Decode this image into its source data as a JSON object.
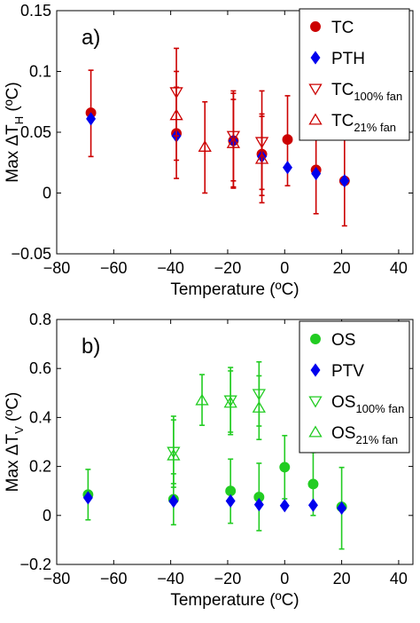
{
  "chart_data": [
    {
      "type": "scatter",
      "panel_label": "a)",
      "xlabel": "Temperature (ºC)",
      "ylabel_main": "Max ΔT",
      "ylabel_sub": "H",
      "ylabel_unit": " (ºC)",
      "xlim": [
        -80,
        45
      ],
      "ylim": [
        -0.05,
        0.15
      ],
      "xticks": [
        -80,
        -60,
        -40,
        -20,
        0,
        20,
        40
      ],
      "yticks": [
        -0.05,
        0,
        0.05,
        0.1,
        0.15
      ],
      "ytick_labels": [
        "−0.05",
        "0",
        "0.05",
        "0.1",
        "0.15"
      ],
      "xtick_labels": [
        "−80",
        "−60",
        "−40",
        "−20",
        "0",
        "20",
        "40"
      ],
      "grid": false,
      "legend_position": "top-right",
      "series": [
        {
          "name": "TC",
          "name_sub": "",
          "marker": "circle",
          "color": "#cc0000",
          "filled": true,
          "errorbar_color": "#cc0000",
          "points": [
            {
              "x": -68,
              "y": 0.066,
              "lo": 0.03,
              "hi": 0.101
            },
            {
              "x": -38,
              "y": 0.049,
              "lo": 0.012,
              "hi": 0.087
            },
            {
              "x": -18,
              "y": 0.043,
              "lo": 0.004,
              "hi": 0.082
            },
            {
              "x": -8,
              "y": 0.032,
              "lo": -0.002,
              "hi": 0.065
            },
            {
              "x": 1,
              "y": 0.044,
              "lo": 0.006,
              "hi": 0.08
            },
            {
              "x": 11,
              "y": 0.019,
              "lo": -0.017,
              "hi": 0.054
            },
            {
              "x": 21,
              "y": 0.01,
              "lo": -0.027,
              "hi": 0.045
            }
          ]
        },
        {
          "name": "PTH",
          "name_sub": "",
          "marker": "diamond",
          "color": "#0000ee",
          "filled": true,
          "errorbar_color": "",
          "points": [
            {
              "x": -68,
              "y": 0.061
            },
            {
              "x": -38,
              "y": 0.047
            },
            {
              "x": -18,
              "y": 0.043
            },
            {
              "x": -8,
              "y": 0.03
            },
            {
              "x": 1,
              "y": 0.021
            },
            {
              "x": 11,
              "y": 0.016
            },
            {
              "x": 21,
              "y": 0.01
            }
          ]
        },
        {
          "name": "TC",
          "name_sub": "100% fan",
          "marker": "triangle-down",
          "color": "#cc0000",
          "filled": false,
          "errorbar_color": "#cc0000",
          "points": [
            {
              "x": -38,
              "y": 0.083,
              "lo": 0.047,
              "hi": 0.119
            },
            {
              "x": -18,
              "y": 0.047,
              "lo": 0.01,
              "hi": 0.084
            },
            {
              "x": -8,
              "y": 0.042,
              "lo": 0.003,
              "hi": 0.084
            }
          ]
        },
        {
          "name": "TC",
          "name_sub": "21% fan",
          "marker": "triangle-up",
          "color": "#cc0000",
          "filled": false,
          "errorbar_color": "#cc0000",
          "points": [
            {
              "x": -38,
              "y": 0.064,
              "lo": 0.027,
              "hi": 0.1
            },
            {
              "x": -28,
              "y": 0.038,
              "lo": 0.0,
              "hi": 0.075
            },
            {
              "x": -18,
              "y": 0.041,
              "lo": 0.005,
              "hi": 0.077
            },
            {
              "x": -8,
              "y": 0.028,
              "lo": -0.008,
              "hi": 0.063
            }
          ]
        }
      ]
    },
    {
      "type": "scatter",
      "panel_label": "b)",
      "xlabel": "Temperature (ºC)",
      "ylabel_main": "Max ΔT",
      "ylabel_sub": "V",
      "ylabel_unit": " (ºC)",
      "xlim": [
        -80,
        45
      ],
      "ylim": [
        -0.2,
        0.8
      ],
      "xticks": [
        -80,
        -60,
        -40,
        -20,
        0,
        20,
        40
      ],
      "yticks": [
        -0.2,
        0,
        0.2,
        0.4,
        0.6,
        0.8
      ],
      "ytick_labels": [
        "−0.2",
        "0",
        "0.2",
        "0.4",
        "0.6",
        "0.8"
      ],
      "xtick_labels": [
        "−80",
        "−60",
        "−40",
        "−20",
        "0",
        "20",
        "40"
      ],
      "grid": false,
      "legend_position": "top-right",
      "series": [
        {
          "name": "OS",
          "name_sub": "",
          "marker": "circle",
          "color": "#22cc22",
          "filled": true,
          "errorbar_color": "#22cc22",
          "points": [
            {
              "x": -69,
              "y": 0.085,
              "lo": -0.018,
              "hi": 0.188
            },
            {
              "x": -39,
              "y": 0.066,
              "lo": -0.038,
              "hi": 0.17
            },
            {
              "x": -19,
              "y": 0.1,
              "lo": -0.032,
              "hi": 0.23
            },
            {
              "x": -9,
              "y": 0.075,
              "lo": -0.062,
              "hi": 0.213
            },
            {
              "x": 0,
              "y": 0.197,
              "lo": 0.068,
              "hi": 0.326
            },
            {
              "x": 10,
              "y": 0.128,
              "lo": 0.0,
              "hi": 0.257
            },
            {
              "x": 20,
              "y": 0.035,
              "lo": -0.137,
              "hi": 0.196
            }
          ]
        },
        {
          "name": "PTV",
          "name_sub": "",
          "marker": "diamond",
          "color": "#0000ee",
          "filled": true,
          "errorbar_color": "",
          "points": [
            {
              "x": -69,
              "y": 0.072
            },
            {
              "x": -39,
              "y": 0.058
            },
            {
              "x": -19,
              "y": 0.059
            },
            {
              "x": -9,
              "y": 0.044
            },
            {
              "x": 0,
              "y": 0.04
            },
            {
              "x": 10,
              "y": 0.042
            },
            {
              "x": 20,
              "y": 0.03
            }
          ]
        },
        {
          "name": "OS",
          "name_sub": "100% fan",
          "marker": "triangle-down",
          "color": "#22cc22",
          "filled": false,
          "errorbar_color": "#22cc22",
          "points": [
            {
              "x": -39,
              "y": 0.26,
              "lo": 0.13,
              "hi": 0.39
            },
            {
              "x": -19,
              "y": 0.47,
              "lo": 0.34,
              "hi": 0.604
            },
            {
              "x": -9,
              "y": 0.496,
              "lo": 0.365,
              "hi": 0.627
            }
          ]
        },
        {
          "name": "OS",
          "name_sub": "21% fan",
          "marker": "triangle-up",
          "color": "#22cc22",
          "filled": false,
          "errorbar_color": "#22cc22",
          "points": [
            {
              "x": -39,
              "y": 0.245,
              "lo": 0.115,
              "hi": 0.405
            },
            {
              "x": -29,
              "y": 0.47,
              "lo": 0.368,
              "hi": 0.575
            },
            {
              "x": -19,
              "y": 0.46,
              "lo": 0.33,
              "hi": 0.59
            },
            {
              "x": -9,
              "y": 0.44,
              "lo": 0.31,
              "hi": 0.57
            }
          ]
        }
      ]
    }
  ]
}
